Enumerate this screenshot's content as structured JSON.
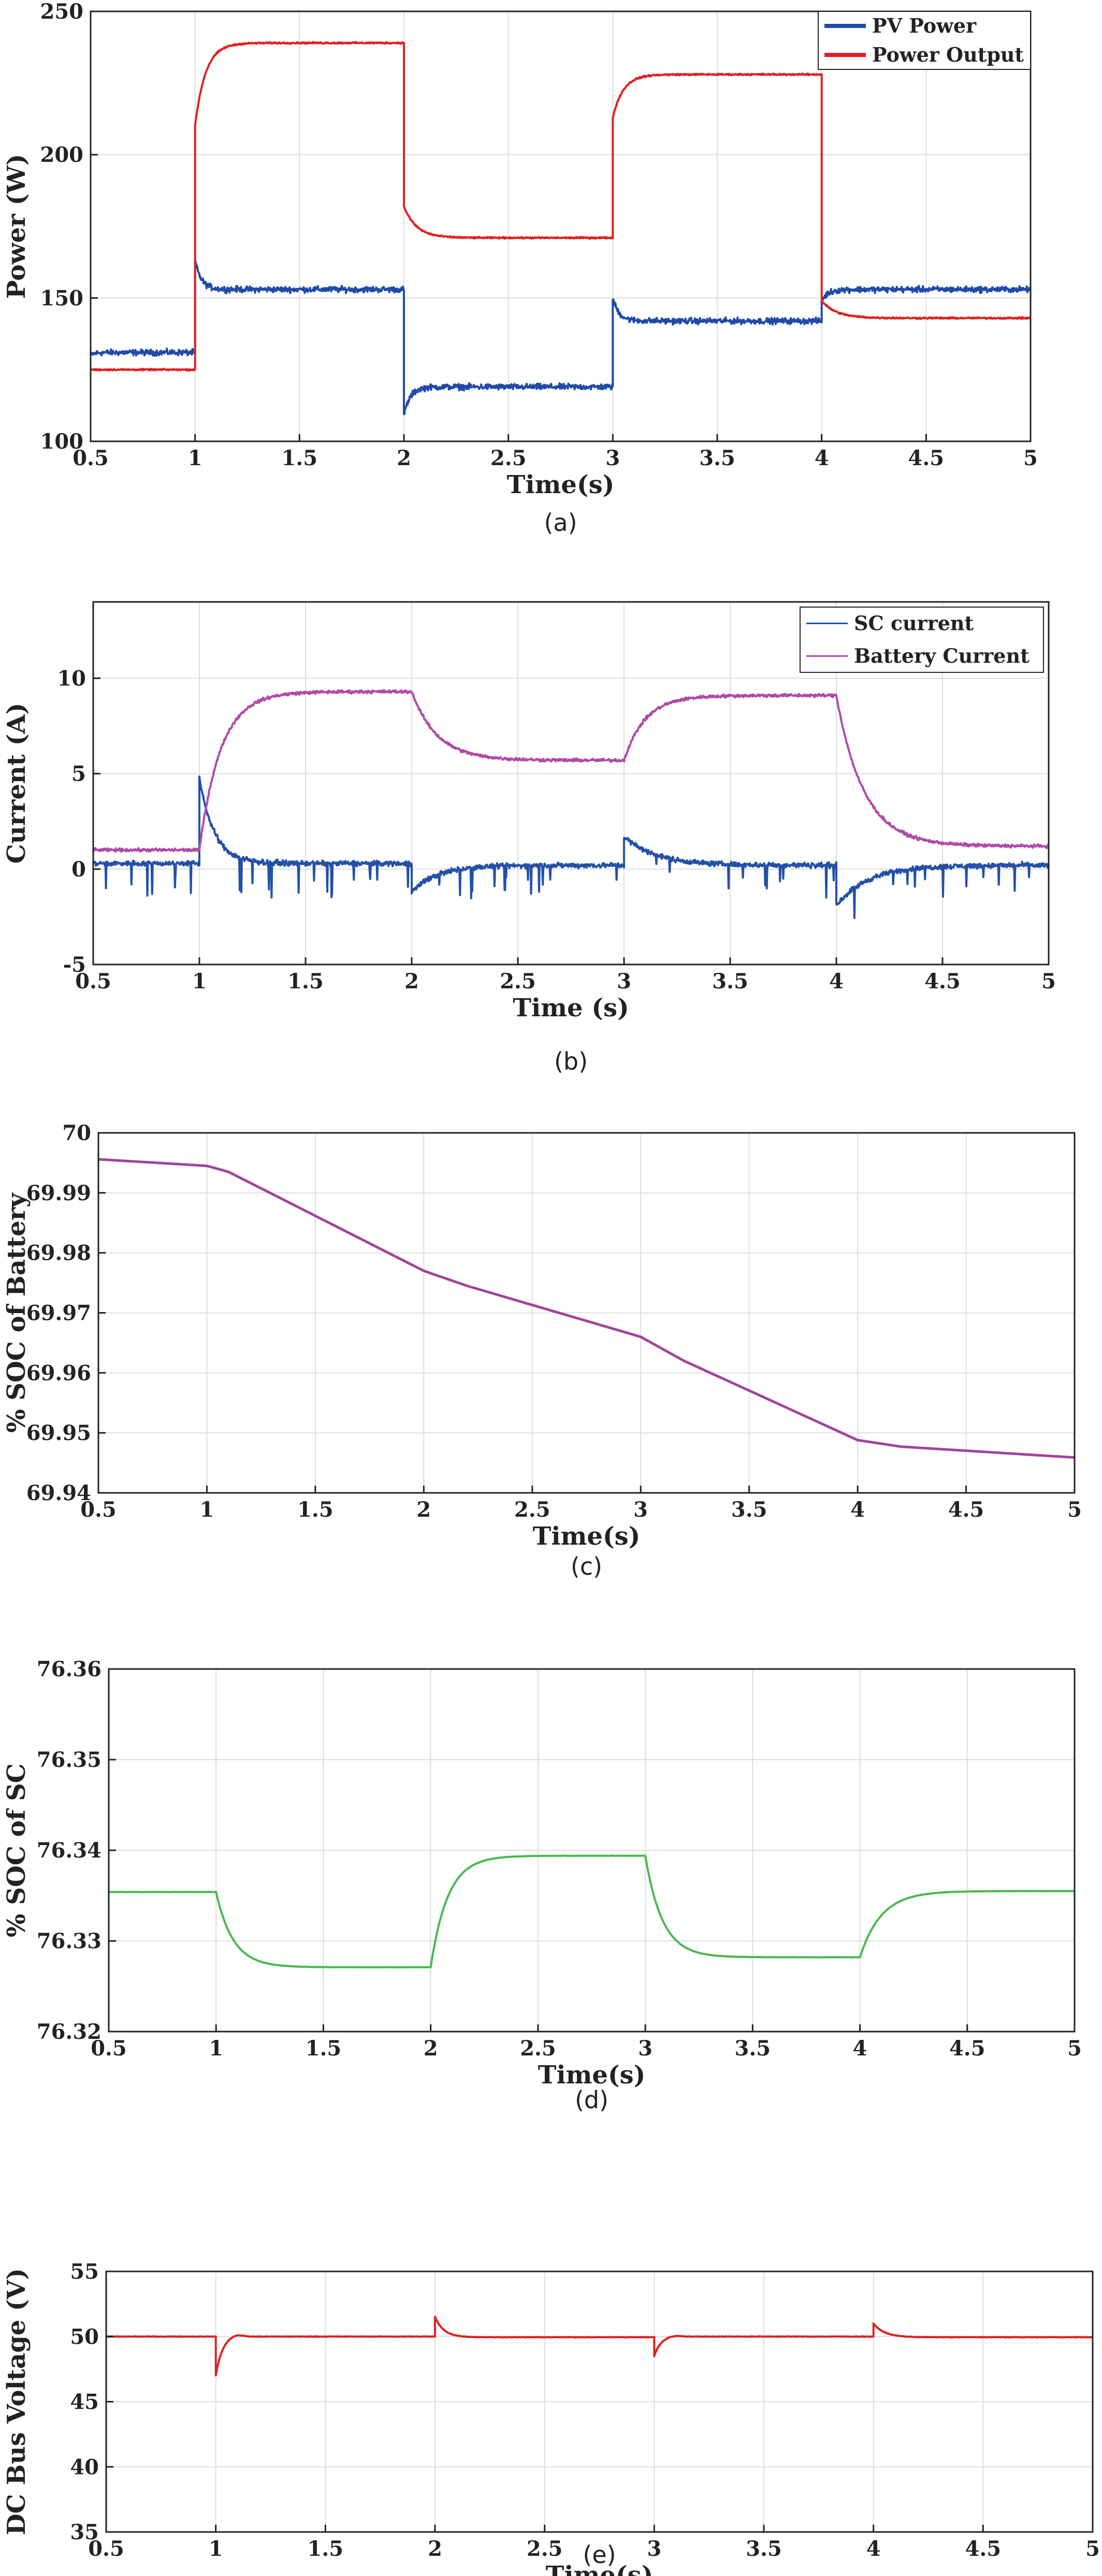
{
  "chart_data": [
    {
      "type": "line",
      "caption": "(a)",
      "xlabel": "Time(s)",
      "ylabel": "Power (W)",
      "xlim": [
        0.5,
        5
      ],
      "ylim": [
        100,
        250
      ],
      "xticks": [
        0.5,
        1,
        1.5,
        2,
        2.5,
        3,
        3.5,
        4,
        4.5,
        5
      ],
      "xtick_labels": [
        "0.5",
        "1",
        "1.5",
        "2",
        "2.5",
        "3",
        "3.5",
        "4",
        "4.5",
        "5"
      ],
      "yticks": [
        100,
        150,
        200,
        250
      ],
      "ytick_labels": [
        "100",
        "150",
        "200",
        "250"
      ],
      "grid": true,
      "legend": "top-right",
      "series": [
        {
          "name": "PV Power",
          "color": "#1f4aa8",
          "noise": 1.5,
          "segments": [
            {
              "t": [
                0.5,
                1.0
              ],
              "start": 130,
              "end": 131,
              "tau": 0.02
            },
            {
              "t": [
                1.0,
                2.0
              ],
              "start": 163,
              "end": 153,
              "tau": 0.03
            },
            {
              "t": [
                2.0,
                3.0
              ],
              "start": 109,
              "end": 119,
              "tau": 0.03
            },
            {
              "t": [
                3.0,
                4.0
              ],
              "start": 150,
              "end": 142,
              "tau": 0.03
            },
            {
              "t": [
                4.0,
                5.0
              ],
              "start": 149,
              "end": 153,
              "tau": 0.03
            }
          ]
        },
        {
          "name": "Power Output",
          "color": "#e02020",
          "noise": 0.4,
          "segments": [
            {
              "t": [
                0.5,
                1.0
              ],
              "start": 125,
              "end": 125,
              "tau": 0.02
            },
            {
              "t": [
                1.0,
                2.0
              ],
              "start": 210,
              "end": 239,
              "tau": 0.05
            },
            {
              "t": [
                2.0,
                3.0
              ],
              "start": 182,
              "end": 171,
              "tau": 0.06
            },
            {
              "t": [
                3.0,
                4.0
              ],
              "start": 213,
              "end": 228,
              "tau": 0.05
            },
            {
              "t": [
                4.0,
                5.0
              ],
              "start": 149,
              "end": 143,
              "tau": 0.07
            }
          ]
        }
      ]
    },
    {
      "type": "line",
      "caption": "(b)",
      "xlabel": "Time (s)",
      "ylabel": "Current (A)",
      "xlim": [
        0.5,
        5
      ],
      "ylim": [
        -5,
        14
      ],
      "xticks": [
        0.5,
        1,
        1.5,
        2,
        2.5,
        3,
        3.5,
        4,
        4.5,
        5
      ],
      "xtick_labels": [
        "0.5",
        "1",
        "1.5",
        "2",
        "2.5",
        "3",
        "3.5",
        "4",
        "4.5",
        "5"
      ],
      "yticks": [
        -5,
        0,
        5,
        10
      ],
      "ytick_labels": [
        "-5",
        "0",
        "5",
        "10"
      ],
      "grid": true,
      "legend": "top-right",
      "series": [
        {
          "name": "SC current",
          "color": "#2350a8",
          "noise": 0.2,
          "spikes": true,
          "segments": [
            {
              "t": [
                0.5,
                1.0
              ],
              "start": 0.3,
              "end": 0.3,
              "tau": 0.02
            },
            {
              "t": [
                1.0,
                2.0
              ],
              "start": 4.8,
              "end": 0.3,
              "tau": 0.07
            },
            {
              "t": [
                2.0,
                3.0
              ],
              "start": -1.2,
              "end": 0.2,
              "tau": 0.12
            },
            {
              "t": [
                3.0,
                4.0
              ],
              "start": 1.7,
              "end": 0.2,
              "tau": 0.15
            },
            {
              "t": [
                4.0,
                5.0
              ],
              "start": -1.9,
              "end": 0.2,
              "tau": 0.15
            }
          ]
        },
        {
          "name": "Battery Current",
          "color": "#b04aa8",
          "noise": 0.12,
          "segments": [
            {
              "t": [
                0.5,
                1.0
              ],
              "start": 1.0,
              "end": 1.0,
              "tau": 0.02
            },
            {
              "t": [
                1.0,
                2.0
              ],
              "start": 1.0,
              "end": 9.3,
              "tau": 0.1
            },
            {
              "t": [
                2.0,
                3.0
              ],
              "start": 9.3,
              "end": 5.7,
              "tau": 0.12
            },
            {
              "t": [
                3.0,
                4.0
              ],
              "start": 5.7,
              "end": 9.1,
              "tau": 0.1
            },
            {
              "t": [
                4.0,
                5.0
              ],
              "start": 9.1,
              "end": 1.2,
              "tau": 0.13
            }
          ]
        }
      ]
    },
    {
      "type": "line",
      "caption": "(c)",
      "xlabel": "Time(s)",
      "ylabel": "% SOC of Battery",
      "xlim": [
        0.5,
        5
      ],
      "ylim": [
        69.94,
        70.0
      ],
      "xticks": [
        0.5,
        1,
        1.5,
        2,
        2.5,
        3,
        3.5,
        4,
        4.5,
        5
      ],
      "xtick_labels": [
        "0.5",
        "1",
        "1.5",
        "2",
        "2.5",
        "3",
        "3.5",
        "4",
        "4.5",
        "5"
      ],
      "yticks": [
        69.94,
        69.95,
        69.96,
        69.97,
        69.98,
        69.99,
        70.0
      ],
      "ytick_labels": [
        "69.94",
        "69.95",
        "69.96",
        "69.97",
        "69.98",
        "69.99",
        "70"
      ],
      "grid": true,
      "series": [
        {
          "color": "#a0449c",
          "points": [
            [
              0.5,
              69.9956
            ],
            [
              1.0,
              69.9945
            ],
            [
              1.1,
              69.9935
            ],
            [
              2.0,
              69.977
            ],
            [
              2.2,
              69.9745
            ],
            [
              3.0,
              69.966
            ],
            [
              3.2,
              69.962
            ],
            [
              4.0,
              69.9488
            ],
            [
              4.2,
              69.9477
            ],
            [
              5.0,
              69.9459
            ]
          ]
        }
      ]
    },
    {
      "type": "line",
      "caption": "(d)",
      "xlabel": "Time(s)",
      "ylabel": "% SOC of SC",
      "xlim": [
        0.5,
        5
      ],
      "ylim": [
        76.32,
        76.36
      ],
      "xticks": [
        0.5,
        1,
        1.5,
        2,
        2.5,
        3,
        3.5,
        4,
        4.5,
        5
      ],
      "xtick_labels": [
        "0.5",
        "1",
        "1.5",
        "2",
        "2.5",
        "3",
        "3.5",
        "4",
        "4.5",
        "5"
      ],
      "yticks": [
        76.32,
        76.33,
        76.34,
        76.35,
        76.36
      ],
      "ytick_labels": [
        "76.32",
        "76.33",
        "76.34",
        "76.35",
        "76.36"
      ],
      "grid": true,
      "series": [
        {
          "color": "#46b850",
          "noise": 3e-05,
          "segments": [
            {
              "t": [
                0.5,
                1.0
              ],
              "start": 76.3354,
              "end": 76.3354,
              "tau": 0.02
            },
            {
              "t": [
                1.0,
                2.0
              ],
              "start": 76.3354,
              "end": 76.3271,
              "tau": 0.08
            },
            {
              "t": [
                2.0,
                3.0
              ],
              "start": 76.3271,
              "end": 76.3394,
              "tau": 0.08
            },
            {
              "t": [
                3.0,
                4.0
              ],
              "start": 76.3394,
              "end": 76.3282,
              "tau": 0.08
            },
            {
              "t": [
                4.0,
                5.0
              ],
              "start": 76.3282,
              "end": 76.3355,
              "tau": 0.1
            }
          ]
        }
      ]
    },
    {
      "type": "line",
      "caption": "(e)",
      "xlabel": "Time(s)",
      "ylabel": "DC Bus Voltage (V)",
      "xlim": [
        0.5,
        5
      ],
      "ylim": [
        35,
        55
      ],
      "xticks": [
        0.5,
        1,
        1.5,
        2,
        2.5,
        3,
        3.5,
        4,
        4.5,
        5
      ],
      "xtick_labels": [
        "0.5",
        "1",
        "1.5",
        "2",
        "2.5",
        "3",
        "3.5",
        "4",
        "4.5",
        "5"
      ],
      "yticks": [
        35,
        40,
        45,
        50,
        55
      ],
      "ytick_labels": [
        "35",
        "40",
        "45",
        "50",
        "55"
      ],
      "grid": true,
      "series": [
        {
          "color": "#e02020",
          "noise": 0.03,
          "segments": [
            {
              "t": [
                0.5,
                1.0
              ],
              "start": 50.0,
              "end": 50.0,
              "tau": 0.02
            },
            {
              "t": [
                1.0,
                2.0
              ],
              "start": 47.0,
              "end": 50.0,
              "tau": 0.03,
              "overshoot": 0.2
            },
            {
              "t": [
                2.0,
                3.0
              ],
              "start": 51.5,
              "end": 49.95,
              "tau": 0.04
            },
            {
              "t": [
                3.0,
                4.0
              ],
              "start": 48.5,
              "end": 50.0,
              "tau": 0.03,
              "overshoot": 0.1
            },
            {
              "t": [
                4.0,
                5.0
              ],
              "start": 51.0,
              "end": 49.95,
              "tau": 0.05
            }
          ]
        }
      ]
    }
  ]
}
